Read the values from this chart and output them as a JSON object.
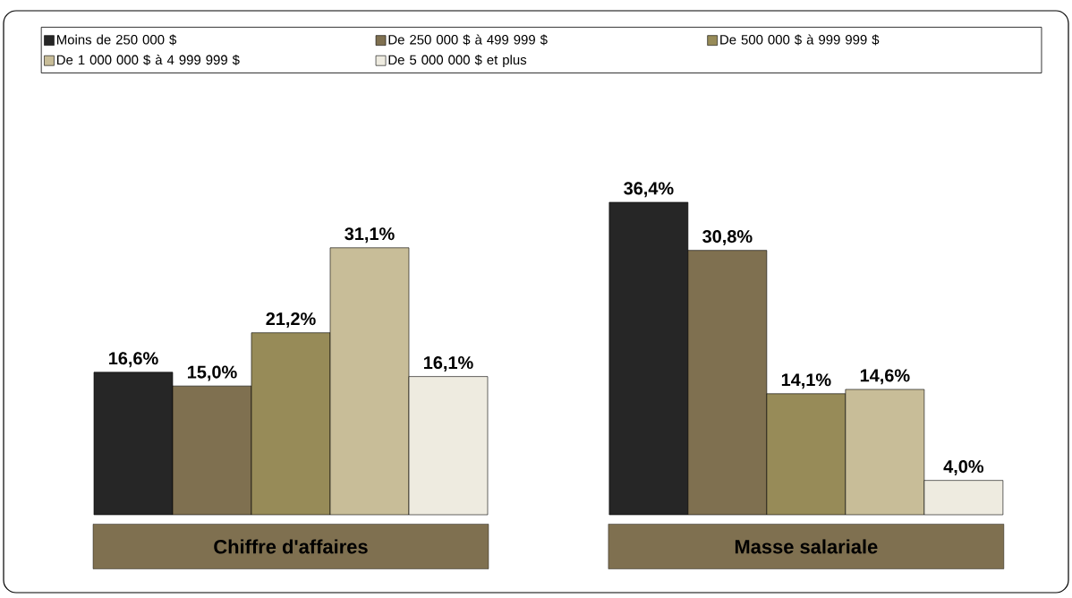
{
  "chart_data": {
    "type": "bar",
    "categories": [
      "Chiffre d'affaires",
      "Masse salariale"
    ],
    "series": [
      {
        "name": "Moins de 250 000 $",
        "color": "#262626",
        "values": [
          16.6,
          36.4
        ],
        "value_labels": [
          "16,6%",
          "36,4%"
        ]
      },
      {
        "name": "De 250 000 $ à 499 999 $",
        "color": "#7f7050",
        "values": [
          15.0,
          30.8
        ],
        "value_labels": [
          "15,0%",
          "30,8%"
        ]
      },
      {
        "name": "De 500 000 $ à 999 999 $",
        "color": "#978b58",
        "values": [
          21.2,
          14.1
        ],
        "value_labels": [
          "21,2%",
          "14,1%"
        ]
      },
      {
        "name": "De 1 000 000 $ à 4 999 999 $",
        "color": "#c8bd98",
        "values": [
          31.1,
          14.6
        ],
        "value_labels": [
          "31,1%",
          "14,6%"
        ]
      },
      {
        "name": "De 5 000 000 $ et plus",
        "color": "#eeebe0",
        "values": [
          16.1,
          4.0
        ],
        "value_labels": [
          "16,1%",
          "4,0%"
        ]
      }
    ],
    "legend": "top",
    "grid": false
  }
}
